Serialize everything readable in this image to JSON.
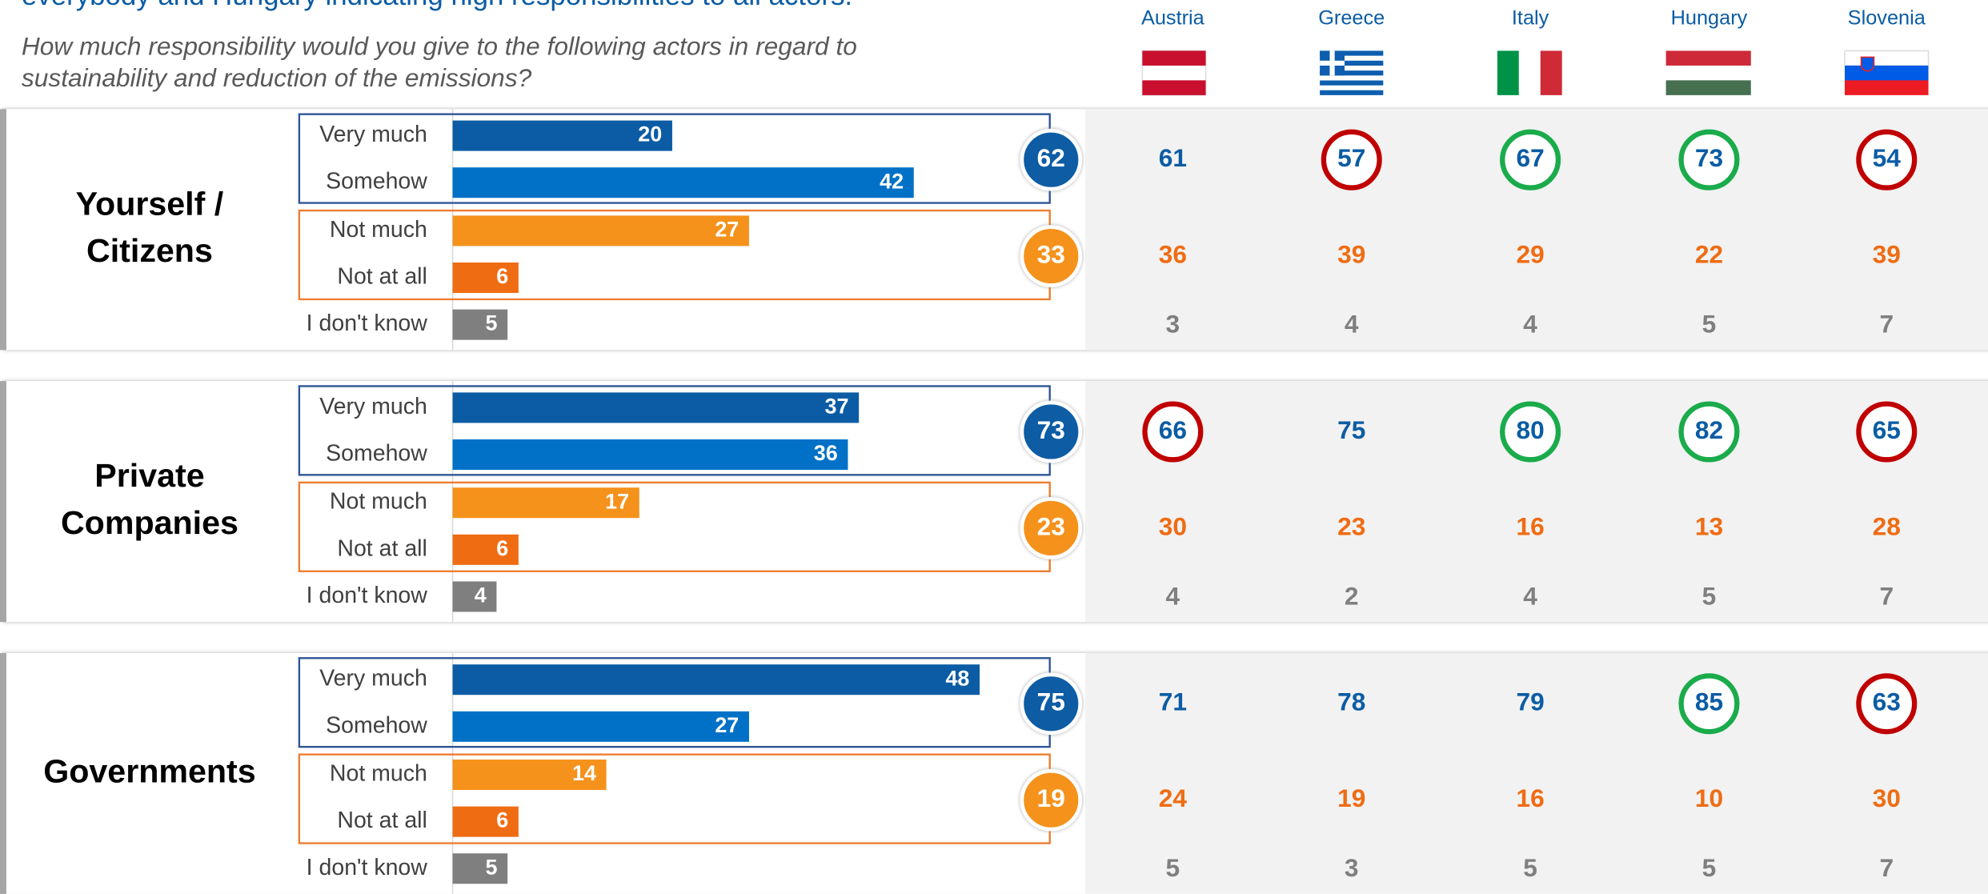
{
  "chart_data": {
    "type": "bar",
    "title": "everybody and Hungary indicating high responsibilities to all actors.",
    "subtitle": [
      "How much responsibility would you give to the following actors in regard to",
      "sustainability and reduction of the emissions?"
    ],
    "countries": [
      "Austria",
      "Greece",
      "Italy",
      "Hungary",
      "Slovenia"
    ],
    "categories": [
      "Very much",
      "Somehow",
      "Not much",
      "Not at all",
      "I don't know"
    ],
    "colors": [
      "#0b5ca4",
      "#0071c7",
      "#f5921b",
      "#ef6c13",
      "#7f7f7f"
    ],
    "circle_colors": {
      "red": "#c00000",
      "green": "#1aab4b"
    },
    "xlim": [
      0,
      100
    ],
    "groups": [
      {
        "label": [
          "Yourself /",
          "Citizens"
        ],
        "values": [
          20,
          42,
          27,
          6,
          5
        ],
        "totals": [
          62,
          33
        ],
        "country_positive": [
          61,
          57,
          67,
          73,
          54
        ],
        "country_negative": [
          36,
          39,
          29,
          22,
          39
        ],
        "country_dont_know": [
          3,
          4,
          4,
          5,
          7
        ],
        "circles": [
          null,
          "red",
          "green",
          "green",
          "red"
        ]
      },
      {
        "label": [
          "Private",
          "Companies"
        ],
        "values": [
          37,
          36,
          17,
          6,
          4
        ],
        "totals": [
          73,
          23
        ],
        "country_positive": [
          66,
          75,
          80,
          82,
          65
        ],
        "country_negative": [
          30,
          23,
          16,
          13,
          28
        ],
        "country_dont_know": [
          4,
          2,
          4,
          5,
          7
        ],
        "circles": [
          "red",
          null,
          "green",
          "green",
          "red"
        ]
      },
      {
        "label": [
          "Governments"
        ],
        "values": [
          48,
          27,
          14,
          6,
          5
        ],
        "totals": [
          75,
          19
        ],
        "country_positive": [
          71,
          78,
          79,
          85,
          63
        ],
        "country_negative": [
          24,
          19,
          16,
          10,
          30
        ],
        "country_dont_know": [
          5,
          3,
          5,
          5,
          7
        ],
        "circles": [
          null,
          null,
          null,
          "green",
          "red"
        ]
      }
    ]
  }
}
